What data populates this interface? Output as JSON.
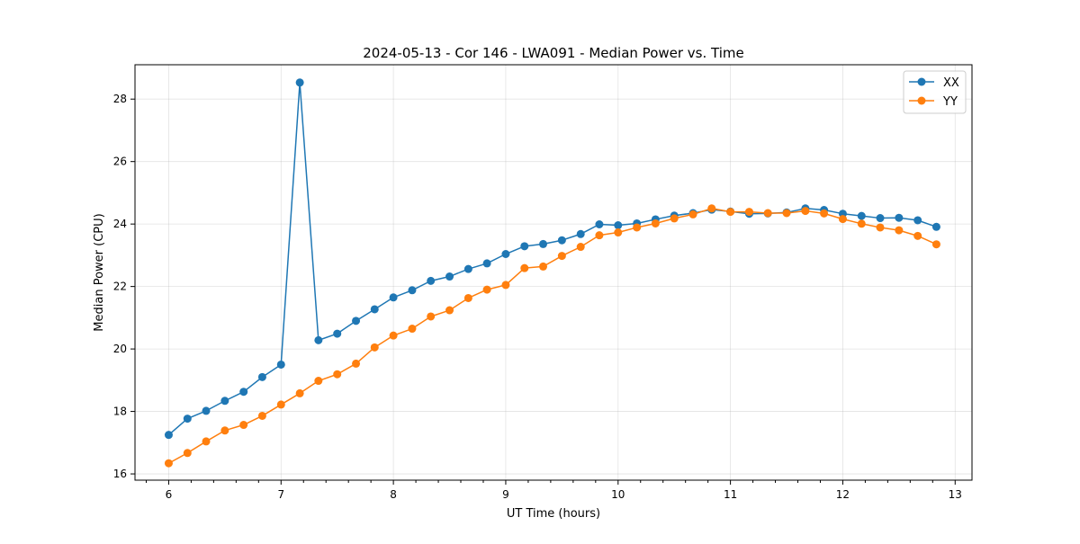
{
  "chart_data": {
    "type": "line",
    "title": "2024-05-13 - Cor 146 - LWA091 - Median Power vs. Time",
    "xlabel": "UT Time (hours)",
    "ylabel": "Median Power (CPU)",
    "xlim": [
      5.7,
      13.15
    ],
    "ylim": [
      15.8,
      29.1
    ],
    "x_ticks": [
      6,
      7,
      8,
      9,
      10,
      11,
      12,
      13
    ],
    "x_tick_labels": [
      "6",
      "7",
      "8",
      "9",
      "10",
      "11",
      "12",
      "13"
    ],
    "x_minor_step": 0.2,
    "y_ticks": [
      16,
      18,
      20,
      22,
      24,
      26,
      28
    ],
    "y_tick_labels": [
      "16",
      "18",
      "20",
      "22",
      "24",
      "26",
      "28"
    ],
    "grid": true,
    "legend_position": "top-right",
    "x": [
      6.0,
      6.167,
      6.333,
      6.5,
      6.667,
      6.833,
      7.0,
      7.167,
      7.333,
      7.5,
      7.667,
      7.833,
      8.0,
      8.167,
      8.333,
      8.5,
      8.667,
      8.833,
      9.0,
      9.167,
      9.333,
      9.5,
      9.667,
      9.833,
      10.0,
      10.167,
      10.333,
      10.5,
      10.667,
      10.833,
      11.0,
      11.167,
      11.333,
      11.5,
      11.667,
      11.833,
      12.0,
      12.167,
      12.333,
      12.5,
      12.667,
      12.833
    ],
    "series": [
      {
        "name": "XX",
        "color": "#1f77b4",
        "values": [
          17.25,
          17.77,
          18.02,
          18.34,
          18.63,
          19.1,
          19.5,
          28.53,
          20.28,
          20.49,
          20.9,
          21.27,
          21.65,
          21.88,
          22.18,
          22.32,
          22.56,
          22.74,
          23.04,
          23.29,
          23.36,
          23.48,
          23.68,
          23.99,
          23.96,
          24.02,
          24.15,
          24.27,
          24.35,
          24.46,
          24.4,
          24.33,
          24.34,
          24.37,
          24.5,
          24.45,
          24.33,
          24.26,
          24.19,
          24.2,
          24.12,
          23.91
        ]
      },
      {
        "name": "YY",
        "color": "#ff7f0e",
        "values": [
          16.34,
          16.67,
          17.04,
          17.39,
          17.57,
          17.86,
          18.22,
          18.58,
          18.98,
          19.19,
          19.53,
          20.05,
          20.43,
          20.65,
          21.04,
          21.24,
          21.63,
          21.9,
          22.05,
          22.59,
          22.64,
          22.98,
          23.27,
          23.64,
          23.73,
          23.89,
          24.02,
          24.18,
          24.31,
          24.5,
          24.39,
          24.39,
          24.35,
          24.35,
          24.42,
          24.34,
          24.16,
          24.01,
          23.89,
          23.8,
          23.62,
          23.35
        ]
      }
    ]
  }
}
